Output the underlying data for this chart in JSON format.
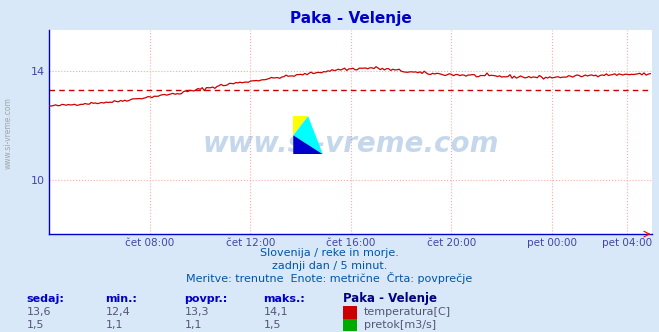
{
  "title": "Paka - Velenje",
  "title_color": "#0000cc",
  "bg_color": "#d8e8f8",
  "plot_bg_color": "#ffffff",
  "grid_color": "#ffaaaa",
  "grid_linestyle": "dotted",
  "watermark_text": "www.si-vreme.com",
  "watermark_color": "#4080c0",
  "watermark_alpha": 0.3,
  "xlabel_color": "#4444aa",
  "ylabel_color": "#4444aa",
  "yticks": [
    10,
    14
  ],
  "ylim": [
    8.0,
    15.5
  ],
  "xlim_min": 0,
  "xlim_max": 288,
  "xtick_labels": [
    "čet 08:00",
    "čet 12:00",
    "čet 16:00",
    "čet 20:00",
    "pet 00:00",
    "pet 04:00"
  ],
  "xtick_positions": [
    48,
    96,
    144,
    192,
    240,
    276
  ],
  "temp_color": "#cc0000",
  "temp_avg_color": "#cc0000",
  "pretok_color": "#00aa00",
  "pretok_avg_color": "#0000cc",
  "axis_color": "#0000cc",
  "temp_avg_value": 13.3,
  "pretok_scale": 0.07,
  "subtitle1": "Slovenija / reke in morje.",
  "subtitle2": "zadnji dan / 5 minut.",
  "subtitle3": "Meritve: trenutne  Enote: metrične  Črta: povprečje",
  "subtitle_color": "#0055aa",
  "legend_title": "Paka - Velenje",
  "legend_color": "#000080",
  "info_sedaj": "sedaj:",
  "info_min": "min.:",
  "info_povpr": "povpr.:",
  "info_maks": "maks.:",
  "temp_sedaj": "13,6",
  "temp_min": "12,4",
  "temp_povpr": "13,3",
  "temp_maks": "14,1",
  "pretok_sedaj": "1,5",
  "pretok_min": "1,1",
  "pretok_povpr": "1,1",
  "pretok_maks": "1,5",
  "info_text_color": "#0000cc",
  "info_value_color": "#555577"
}
